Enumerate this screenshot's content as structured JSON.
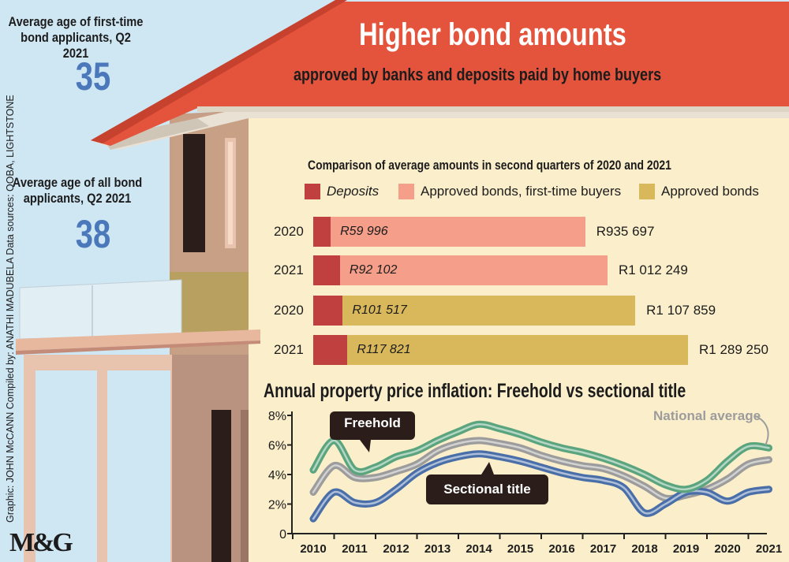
{
  "header": {
    "title": "Higher bond amounts",
    "subtitle": "approved by banks and deposits paid by home buyers"
  },
  "stats": [
    {
      "label": "Average age of first-time bond applicants, Q2 2021",
      "value": "35"
    },
    {
      "label": "Average age of all bond applicants, Q2 2021",
      "value": "38"
    }
  ],
  "credits": "Graphic: JOHN McCANN  Compiled by: ANATHI MADUBELA  Data sources: OOBA, LIGHTSTONE",
  "logo": "M&G",
  "colors": {
    "deposit": "#c0403f",
    "first_time": "#f59f8a",
    "approved": "#d8b85a",
    "freehold": "#5aa47e",
    "national": "#9c9c9c",
    "sectional": "#4a6fa8",
    "panel": "#fbeecb",
    "roof": "#e4533c"
  },
  "chart_data": [
    {
      "type": "bar",
      "title": "Comparison of average amounts in second quarters of 2020 and 2021",
      "legend": [
        "Deposits",
        "Approved bonds, first-time buyers",
        "Approved bonds"
      ],
      "legend_position": "top",
      "bars": [
        {
          "year": "2020",
          "series": "Approved bonds, first-time buyers",
          "deposit": 59996,
          "deposit_label": "R59 996",
          "total": 935697,
          "total_label": "R935 697"
        },
        {
          "year": "2021",
          "series": "Approved bonds, first-time buyers",
          "deposit": 92102,
          "deposit_label": "R92 102",
          "total": 1012249,
          "total_label": "R1 012 249"
        },
        {
          "year": "2020",
          "series": "Approved bonds",
          "deposit": 101517,
          "deposit_label": "R101 517",
          "total": 1107859,
          "total_label": "R1 107 859"
        },
        {
          "year": "2021",
          "series": "Approved bonds",
          "deposit": 117821,
          "deposit_label": "R117 821",
          "total": 1289250,
          "total_label": "R1 289 250"
        }
      ]
    },
    {
      "type": "line",
      "title": "Annual property price inflation: Freehold vs sectional title",
      "x": [
        2010,
        2010.5,
        2011,
        2011.5,
        2012,
        2012.5,
        2013,
        2013.5,
        2014,
        2014.5,
        2015,
        2015.5,
        2016,
        2016.5,
        2017,
        2017.5,
        2018,
        2018.5,
        2019,
        2019.5,
        2020,
        2020.5,
        2021
      ],
      "xticks": [
        "2010",
        "2011",
        "2012",
        "2013",
        "2014",
        "2015",
        "2016",
        "2017",
        "2018",
        "2019",
        "2020",
        "2021"
      ],
      "yticks": [
        "0",
        "2%",
        "4%",
        "6%",
        "8%"
      ],
      "ylim": [
        0,
        8
      ],
      "series": [
        {
          "name": "Freehold",
          "color": "#5aa47e",
          "values": [
            4.3,
            6.3,
            4.3,
            4.5,
            5.2,
            5.6,
            6.3,
            6.9,
            7.4,
            7.1,
            6.7,
            6.2,
            5.8,
            5.5,
            5.1,
            4.6,
            4.0,
            3.3,
            3.0,
            3.6,
            4.9,
            5.9,
            5.8
          ]
        },
        {
          "name": "National average",
          "color": "#9c9c9c",
          "values": [
            2.8,
            4.6,
            3.8,
            3.8,
            4.2,
            4.7,
            5.6,
            6.1,
            6.3,
            6.1,
            5.8,
            5.3,
            4.9,
            4.6,
            4.4,
            3.9,
            3.2,
            2.4,
            2.6,
            3.0,
            3.7,
            4.7,
            5.0
          ]
        },
        {
          "name": "Sectional title",
          "color": "#4a6fa8",
          "values": [
            1.0,
            2.8,
            2.1,
            2.1,
            3.0,
            4.1,
            4.8,
            5.2,
            5.4,
            5.2,
            4.9,
            4.5,
            4.1,
            3.8,
            3.6,
            3.1,
            1.4,
            2.0,
            2.8,
            2.8,
            2.2,
            2.8,
            3.0
          ]
        }
      ],
      "labels": {
        "freehold": "Freehold",
        "national": "National average",
        "sectional": "Sectional title"
      }
    }
  ]
}
